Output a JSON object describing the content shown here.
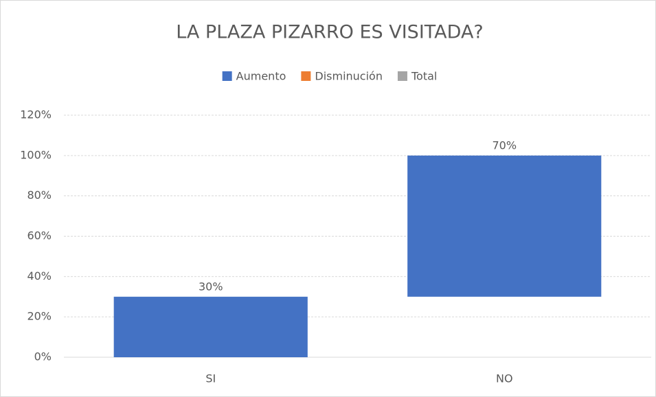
{
  "chart_data": {
    "type": "waterfall",
    "title": "LA PLAZA PIZARRO ES VISITADA?",
    "categories": [
      "SI",
      "NO"
    ],
    "series": [
      {
        "name": "Aumento",
        "color": "#4472c4",
        "values": [
          30,
          70
        ],
        "value_labels": [
          "30%",
          "70%"
        ]
      },
      {
        "name": "Disminución",
        "color": "#ed7d31",
        "values": [
          null,
          null
        ]
      },
      {
        "name": "Total",
        "color": "#a5a5a5",
        "values": [
          null,
          null
        ]
      }
    ],
    "ylim": [
      0,
      120
    ],
    "yticks": [
      {
        "value": 0,
        "label": "0%"
      },
      {
        "value": 20,
        "label": "20%"
      },
      {
        "value": 40,
        "label": "40%"
      },
      {
        "value": 60,
        "label": "60%"
      },
      {
        "value": 80,
        "label": "80%"
      },
      {
        "value": 100,
        "label": "100%"
      },
      {
        "value": 120,
        "label": "120%"
      }
    ],
    "grid": true,
    "legend": "top"
  }
}
